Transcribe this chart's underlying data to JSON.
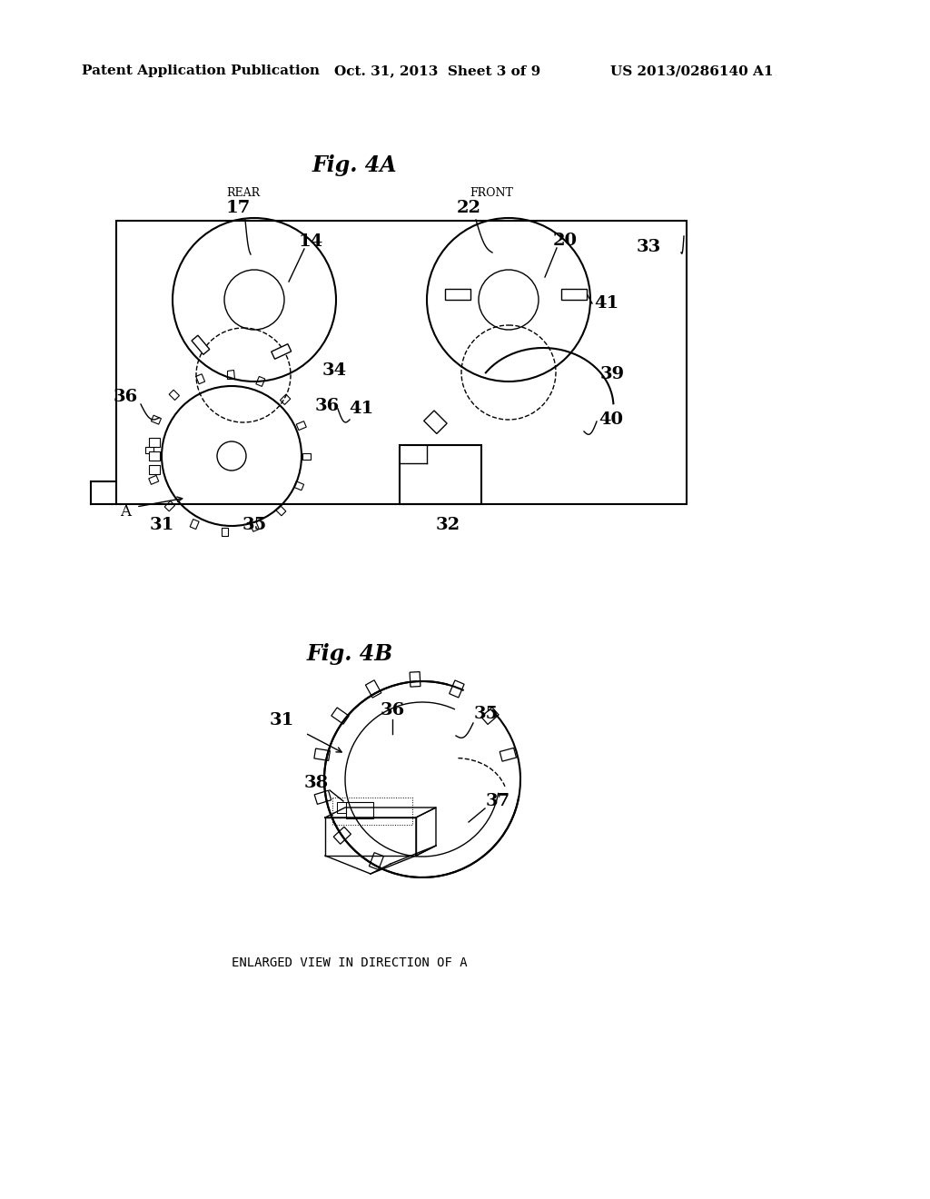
{
  "bg_color": "#ffffff",
  "line_color": "#000000",
  "header_left": "Patent Application Publication",
  "header_mid": "Oct. 31, 2013  Sheet 3 of 9",
  "header_right": "US 2013/0286140 A1",
  "fig4a_label": "Fig. 4A",
  "fig4b_label": "Fig. 4B",
  "fig4b_caption": "ENLARGED VIEW IN DIRECTION OF A"
}
